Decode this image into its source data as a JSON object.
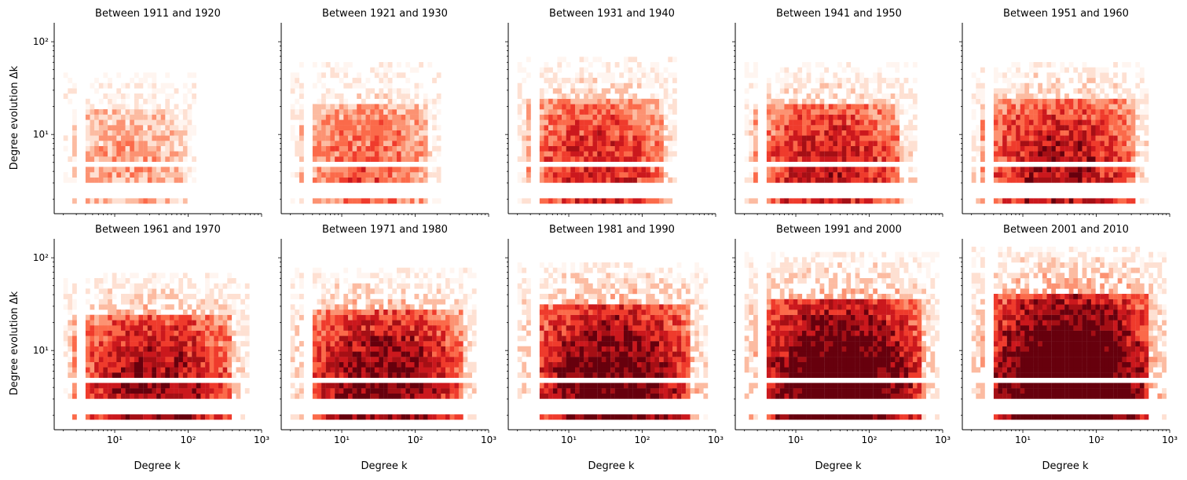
{
  "figure": {
    "ylabel": "Degree evolution Δk",
    "xlabel": "Degree k"
  },
  "chart_data": {
    "type": "heatmap",
    "x_scale": "log",
    "y_scale": "log",
    "xlim": [
      1.5,
      1000
    ],
    "ylim": [
      1.4,
      160
    ],
    "x_ticks": [
      {
        "value": 10,
        "label": "10¹"
      },
      {
        "value": 100,
        "label": "10²"
      },
      {
        "value": 1000,
        "label": "10³"
      }
    ],
    "y_ticks": [
      {
        "value": 10,
        "label": "10¹"
      },
      {
        "value": 100,
        "label": "10²"
      }
    ],
    "colormap": [
      "#fff5f0",
      "#fee0d2",
      "#fcbba1",
      "#fc9272",
      "#fb6a4a",
      "#ef3b2c",
      "#cb181d",
      "#a50f15",
      "#67000d"
    ],
    "dk_rows": [
      2,
      3.5,
      4,
      5.5,
      6.5,
      7.5,
      8.5,
      10,
      11,
      12.5,
      14,
      15.5
    ],
    "panels": [
      {
        "title": "Between 1911 and 1920",
        "intensity": 0.28,
        "kmax": 130,
        "dkmax": 48
      },
      {
        "title": "Between 1921 and 1930",
        "intensity": 0.42,
        "kmax": 230,
        "dkmax": 60
      },
      {
        "title": "Between 1931 and 1940",
        "intensity": 0.58,
        "kmax": 300,
        "dkmax": 65
      },
      {
        "title": "Between 1941 and 1950",
        "intensity": 0.62,
        "kmax": 420,
        "dkmax": 60
      },
      {
        "title": "Between 1951 and 1960",
        "intensity": 0.66,
        "kmax": 550,
        "dkmax": 62
      },
      {
        "title": "Between 1961 and 1970",
        "intensity": 0.7,
        "kmax": 650,
        "dkmax": 72
      },
      {
        "title": "Between 1971 and 1980",
        "intensity": 0.76,
        "kmax": 700,
        "dkmax": 78
      },
      {
        "title": "Between 1981 and 1990",
        "intensity": 0.82,
        "kmax": 750,
        "dkmax": 95
      },
      {
        "title": "Between 1991 and 2000",
        "intensity": 0.9,
        "kmax": 850,
        "dkmax": 110
      },
      {
        "title": "Between 2001 and 2010",
        "intensity": 0.97,
        "kmax": 900,
        "dkmax": 130
      }
    ]
  }
}
